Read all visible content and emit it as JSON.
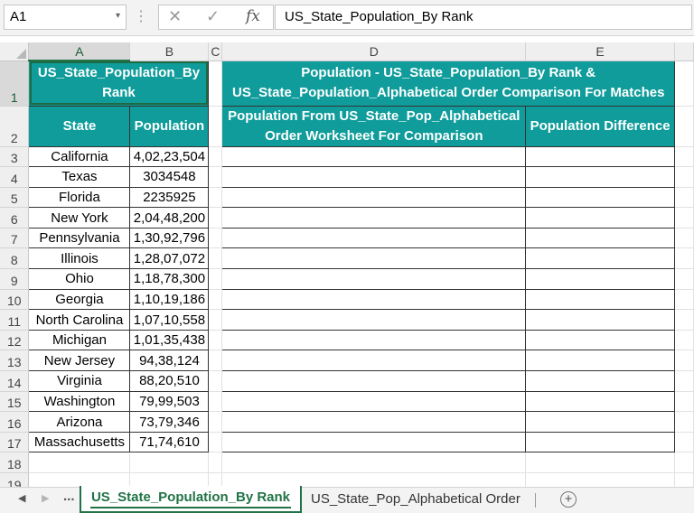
{
  "formula_bar": {
    "name_box": "A1",
    "name_box_arrow": "▾",
    "dots": "⋮",
    "cancel_icon": "✕",
    "enter_icon": "✓",
    "fx_label": "fx",
    "content": "US_State_Population_By Rank"
  },
  "grid": {
    "columns": [
      "A",
      "B",
      "C",
      "D",
      "E"
    ],
    "row_numbers": [
      "1",
      "2",
      "3",
      "4",
      "5",
      "6",
      "7",
      "8",
      "9",
      "10",
      "11",
      "12",
      "13",
      "14",
      "15",
      "16",
      "17",
      "18",
      "19"
    ],
    "title_a1": "US_State_Population_By Rank",
    "header_state": "State",
    "header_population": "Population",
    "title_d1": "Population - US_State_Population_By Rank & US_State_Population_Alphabetical Order Comparison For Matches",
    "header_d2": "Population From US_State_Pop_Alphabetical Order Worksheet For Comparison",
    "header_e2": "Population Difference",
    "rows": [
      {
        "state": "California",
        "population": "4,02,23,504"
      },
      {
        "state": "Texas",
        "population": "3034548"
      },
      {
        "state": "Florida",
        "population": "2235925"
      },
      {
        "state": "New York",
        "population": "2,04,48,200"
      },
      {
        "state": "Pennsylvania",
        "population": "1,30,92,796"
      },
      {
        "state": "Illinois",
        "population": "1,28,07,072"
      },
      {
        "state": "Ohio",
        "population": "1,18,78,300"
      },
      {
        "state": "Georgia",
        "population": "1,10,19,186"
      },
      {
        "state": "North Carolina",
        "population": "1,07,10,558"
      },
      {
        "state": "Michigan",
        "population": "1,01,35,438"
      },
      {
        "state": "New Jersey",
        "population": "94,38,124"
      },
      {
        "state": "Virginia",
        "population": "88,20,510"
      },
      {
        "state": "Washington",
        "population": "79,99,503"
      },
      {
        "state": "Arizona",
        "population": "73,79,346"
      },
      {
        "state": "Massachusetts",
        "population": "71,74,610"
      }
    ]
  },
  "tabs": {
    "prev_icon": "◀",
    "next_icon": "▶",
    "more": "...",
    "active": "US_State_Population_By Rank",
    "second": "US_State_Pop_Alphabetical Order",
    "add_icon": "+"
  },
  "colors": {
    "header_fill": "#0f9c9a",
    "accent": "#217346"
  }
}
